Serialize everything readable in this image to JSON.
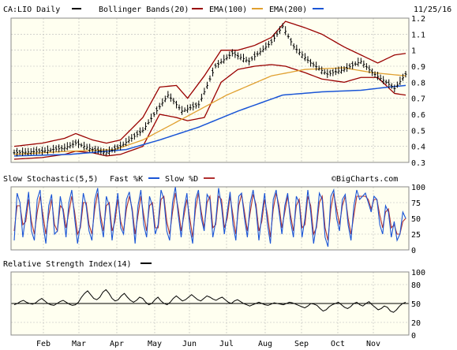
{
  "header": {
    "ticker_label": "CA:LIO Daily",
    "date": "11/25/16",
    "copyright": "©BigCharts.com"
  },
  "legend": {
    "bollinger": "Bollinger Bands(20)",
    "ema100": "EMA(100)",
    "ema200": "EMA(200)",
    "stoch": "Slow Stochastic(5,5)",
    "fastk": "Fast %K",
    "slowd": "Slow %D",
    "rsi": "Relative Strength Index(14)"
  },
  "colors": {
    "price": "#000000",
    "bollinger": "#990000",
    "ema100": "#e0a030",
    "ema200": "#1a55d6",
    "fastk": "#1a55d6",
    "slowd": "#b03030",
    "rsi": "#000000",
    "plot_bg": "#fffff0"
  },
  "chart_data": [
    {
      "type": "ohlc",
      "ylim": [
        0.3,
        1.2
      ],
      "yticks": [
        0.3,
        0.4,
        0.5,
        0.6,
        0.7,
        0.8,
        0.9,
        1.0,
        1.1,
        1.2
      ],
      "months": [
        "Feb",
        "Mar",
        "Apr",
        "May",
        "Jun",
        "Jul",
        "Aug",
        "Sep",
        "Oct",
        "Nov"
      ],
      "price_path": [
        [
          0,
          0.36
        ],
        [
          10,
          0.37
        ],
        [
          18,
          0.39
        ],
        [
          22,
          0.42
        ],
        [
          28,
          0.38
        ],
        [
          33,
          0.36
        ],
        [
          38,
          0.4
        ],
        [
          46,
          0.5
        ],
        [
          55,
          0.72
        ],
        [
          60,
          0.62
        ],
        [
          66,
          0.66
        ],
        [
          72,
          0.9
        ],
        [
          78,
          0.98
        ],
        [
          84,
          0.93
        ],
        [
          92,
          1.05
        ],
        [
          96,
          1.15
        ],
        [
          100,
          1.02
        ],
        [
          106,
          0.92
        ],
        [
          112,
          0.85
        ],
        [
          118,
          0.88
        ],
        [
          124,
          0.93
        ],
        [
          128,
          0.86
        ],
        [
          133,
          0.8
        ],
        [
          136,
          0.76
        ],
        [
          140,
          0.85
        ]
      ],
      "series": [
        {
          "name": "Bollinger Bands(20)",
          "upper": [
            [
              0,
              0.4
            ],
            [
              10,
              0.42
            ],
            [
              18,
              0.45
            ],
            [
              22,
              0.48
            ],
            [
              28,
              0.44
            ],
            [
              33,
              0.42
            ],
            [
              38,
              0.44
            ],
            [
              46,
              0.58
            ],
            [
              52,
              0.77
            ],
            [
              58,
              0.78
            ],
            [
              62,
              0.7
            ],
            [
              68,
              0.84
            ],
            [
              74,
              1.0
            ],
            [
              80,
              1.0
            ],
            [
              86,
              1.03
            ],
            [
              92,
              1.08
            ],
            [
              97,
              1.18
            ],
            [
              104,
              1.14
            ],
            [
              110,
              1.1
            ],
            [
              118,
              1.02
            ],
            [
              124,
              0.97
            ],
            [
              130,
              0.92
            ],
            [
              136,
              0.97
            ],
            [
              140,
              0.98
            ]
          ],
          "lower": [
            [
              0,
              0.32
            ],
            [
              10,
              0.33
            ],
            [
              18,
              0.35
            ],
            [
              22,
              0.37
            ],
            [
              28,
              0.36
            ],
            [
              33,
              0.34
            ],
            [
              38,
              0.35
            ],
            [
              46,
              0.4
            ],
            [
              52,
              0.6
            ],
            [
              58,
              0.58
            ],
            [
              62,
              0.56
            ],
            [
              68,
              0.58
            ],
            [
              74,
              0.8
            ],
            [
              80,
              0.88
            ],
            [
              86,
              0.9
            ],
            [
              92,
              0.91
            ],
            [
              97,
              0.9
            ],
            [
              104,
              0.86
            ],
            [
              110,
              0.82
            ],
            [
              118,
              0.8
            ],
            [
              124,
              0.83
            ],
            [
              130,
              0.83
            ],
            [
              136,
              0.73
            ],
            [
              140,
              0.72
            ]
          ]
        },
        {
          "name": "EMA(100)",
          "values": [
            [
              0,
              0.35
            ],
            [
              20,
              0.37
            ],
            [
              36,
              0.38
            ],
            [
              46,
              0.44
            ],
            [
              60,
              0.57
            ],
            [
              76,
              0.72
            ],
            [
              92,
              0.84
            ],
            [
              104,
              0.88
            ],
            [
              118,
              0.89
            ],
            [
              128,
              0.86
            ],
            [
              140,
              0.84
            ]
          ]
        },
        {
          "name": "EMA(200)",
          "values": [
            [
              0,
              0.34
            ],
            [
              20,
              0.35
            ],
            [
              40,
              0.38
            ],
            [
              52,
              0.44
            ],
            [
              66,
              0.52
            ],
            [
              80,
              0.62
            ],
            [
              96,
              0.72
            ],
            [
              110,
              0.74
            ],
            [
              124,
              0.75
            ],
            [
              134,
              0.77
            ],
            [
              140,
              0.78
            ]
          ]
        }
      ]
    },
    {
      "type": "line",
      "ylim": [
        0,
        100
      ],
      "yticks": [
        0,
        25,
        50,
        75,
        100
      ],
      "series": [
        {
          "name": "Fast %K",
          "values": [
            15,
            90,
            75,
            20,
            55,
            92,
            30,
            15,
            80,
            95,
            40,
            10,
            70,
            88,
            25,
            30,
            85,
            60,
            20,
            75,
            95,
            50,
            10,
            40,
            90,
            70,
            30,
            15,
            80,
            98,
            45,
            20,
            85,
            70,
            15,
            55,
            90,
            35,
            25,
            80,
            92,
            60,
            10,
            70,
            95,
            40,
            20,
            85,
            70,
            25,
            40,
            95,
            80,
            30,
            15,
            75,
            100,
            55,
            20,
            65,
            90,
            35,
            10,
            80,
            95,
            50,
            30,
            88,
            80,
            20,
            45,
            98,
            70,
            25,
            60,
            92,
            40,
            15,
            85,
            90,
            50,
            20,
            75,
            95,
            65,
            15,
            55,
            90,
            40,
            10,
            80,
            95,
            60,
            25,
            70,
            90,
            45,
            20,
            85,
            75,
            20,
            50,
            95,
            60,
            10,
            40,
            90,
            80,
            20,
            5,
            85,
            95,
            50,
            30,
            80,
            88,
            40,
            15,
            70,
            95,
            80,
            85,
            90,
            75,
            60,
            85,
            80,
            40,
            25,
            70,
            60,
            20,
            45,
            15,
            25,
            60,
            50
          ]
        },
        {
          "name": "Slow %D",
          "values": [
            30,
            70,
            70,
            40,
            45,
            80,
            45,
            25,
            60,
            85,
            55,
            25,
            55,
            80,
            40,
            30,
            70,
            65,
            35,
            60,
            85,
            60,
            25,
            35,
            75,
            75,
            40,
            25,
            65,
            90,
            55,
            30,
            70,
            75,
            30,
            45,
            80,
            45,
            30,
            65,
            85,
            65,
            25,
            55,
            85,
            55,
            30,
            70,
            75,
            35,
            35,
            80,
            85,
            45,
            25,
            60,
            90,
            65,
            30,
            55,
            80,
            50,
            20,
            65,
            90,
            60,
            35,
            75,
            85,
            35,
            40,
            85,
            80,
            35,
            50,
            85,
            55,
            25,
            70,
            88,
            60,
            30,
            60,
            88,
            72,
            30,
            45,
            80,
            55,
            20,
            65,
            90,
            70,
            35,
            60,
            85,
            55,
            30,
            70,
            80,
            35,
            40,
            85,
            70,
            25,
            35,
            75,
            85,
            35,
            15,
            65,
            90,
            65,
            40,
            70,
            85,
            50,
            25,
            55,
            85,
            85,
            85,
            85,
            80,
            65,
            80,
            80,
            55,
            35,
            60,
            65,
            35,
            40,
            25,
            25,
            45,
            50
          ]
        }
      ]
    },
    {
      "type": "line",
      "ylim": [
        0,
        100
      ],
      "yticks": [
        0,
        20,
        50,
        80,
        100
      ],
      "series": [
        {
          "name": "Relative Strength Index(14)",
          "values": [
            48,
            50,
            53,
            55,
            52,
            50,
            49,
            51,
            55,
            58,
            54,
            50,
            48,
            47,
            50,
            53,
            55,
            52,
            49,
            47,
            48,
            52,
            60,
            66,
            70,
            64,
            58,
            56,
            60,
            68,
            72,
            66,
            58,
            54,
            56,
            62,
            66,
            60,
            55,
            52,
            55,
            60,
            58,
            52,
            48,
            50,
            56,
            60,
            54,
            50,
            48,
            52,
            58,
            62,
            58,
            54,
            56,
            60,
            64,
            60,
            56,
            54,
            58,
            62,
            60,
            57,
            55,
            58,
            60,
            56,
            52,
            50,
            54,
            56,
            53,
            50,
            48,
            46,
            48,
            50,
            52,
            50,
            48,
            47,
            49,
            51,
            50,
            49,
            48,
            50,
            52,
            51,
            49,
            47,
            45,
            43,
            46,
            50,
            49,
            47,
            42,
            38,
            40,
            45,
            48,
            50,
            52,
            48,
            44,
            42,
            45,
            50,
            52,
            48,
            46,
            50,
            53,
            48,
            44,
            40,
            42,
            46,
            44,
            38,
            36,
            40,
            46,
            50,
            52
          ]
        }
      ]
    }
  ]
}
